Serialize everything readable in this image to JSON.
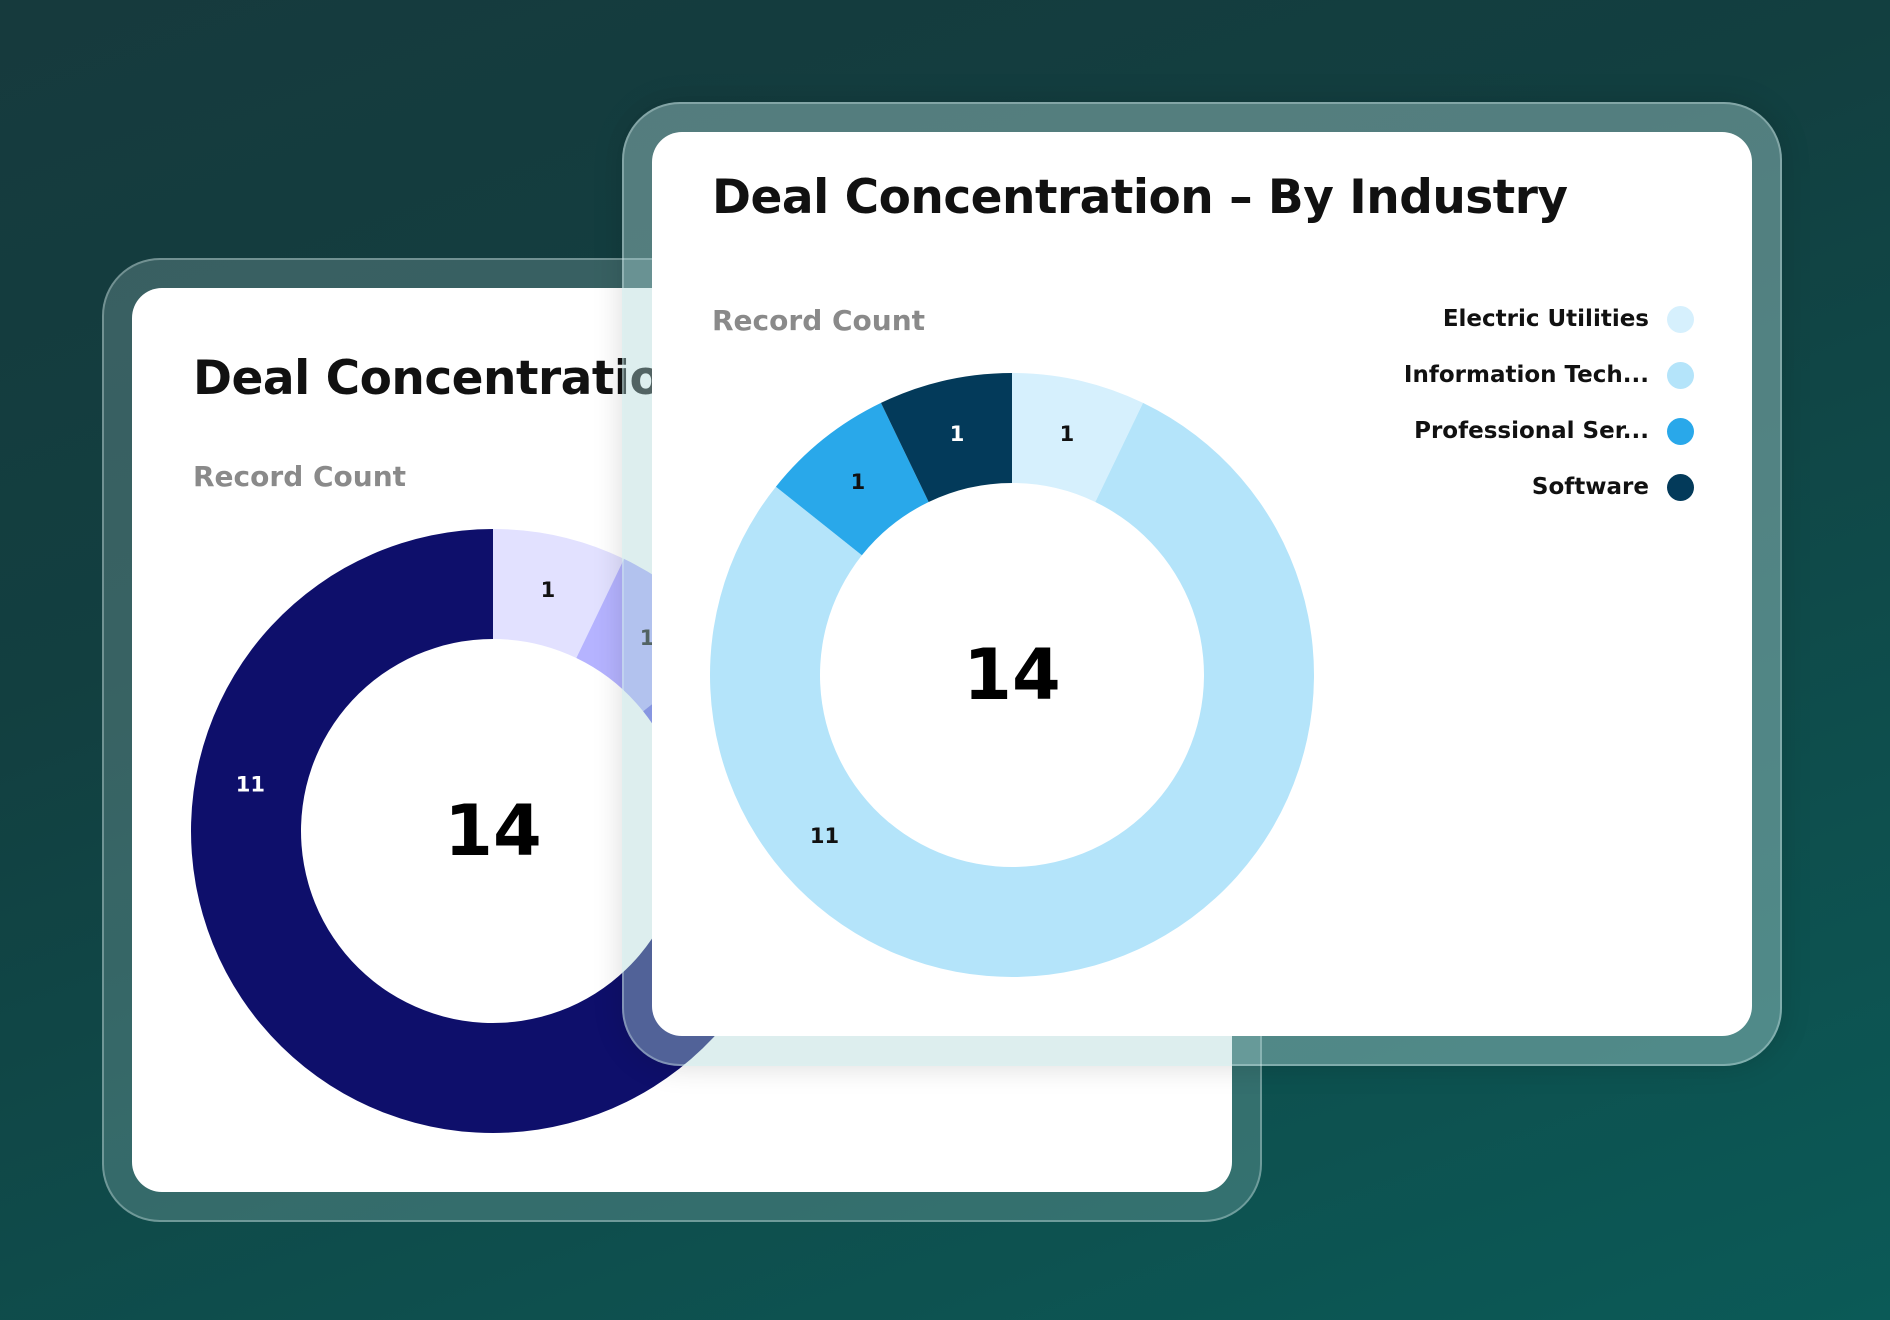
{
  "back_card": {
    "title": "Deal Concentration",
    "subtitle": "Record Count",
    "total": "14"
  },
  "front_card": {
    "title": "Deal Concentration – By Industry",
    "subtitle": "Record Count",
    "total": "14"
  },
  "chart_data": [
    {
      "type": "pie",
      "donut": true,
      "title": "Deal Concentration",
      "subtitle": "Record Count",
      "center_label": "14",
      "categories": [
        "",
        "",
        "",
        ""
      ],
      "values": [
        1,
        1,
        1,
        11
      ],
      "colors": [
        "#e2e1ff",
        "#b5b3ff",
        "#6b68e8",
        "#0e0f6b"
      ],
      "legend": "none"
    },
    {
      "type": "pie",
      "donut": true,
      "title": "Deal Concentration – By Industry",
      "subtitle": "Record Count",
      "center_label": "14",
      "categories": [
        "Electric Utilities",
        "Information Tech...",
        "Professional Ser...",
        "Software"
      ],
      "values": [
        1,
        11,
        1,
        1
      ],
      "colors": [
        "#d6f0fd",
        "#b4e4fa",
        "#29a8ea",
        "#033a5a"
      ],
      "legend": "top-right"
    }
  ]
}
